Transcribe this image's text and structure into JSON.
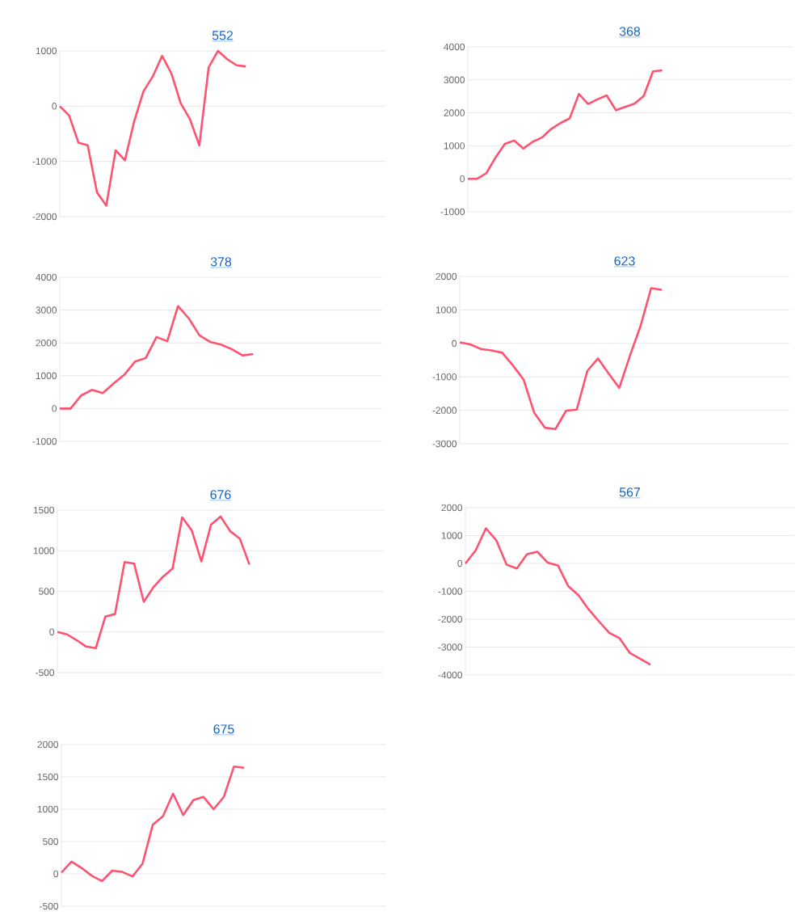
{
  "chart_data": [
    {
      "type": "line",
      "title": "552",
      "categories": [
        null,
        null,
        null,
        null,
        null,
        null,
        null,
        null,
        null,
        null,
        null,
        null,
        null,
        null,
        null,
        null,
        null,
        null,
        null,
        null,
        null,
        null,
        null,
        null,
        null,
        null,
        null,
        null,
        null,
        null,
        null,
        null,
        null,
        null,
        null,
        null
      ],
      "values": [
        0,
        -170,
        -660,
        -710,
        -1560,
        -1800,
        -800,
        -980,
        -270,
        270,
        540,
        910,
        590,
        50,
        -240,
        -710,
        700,
        1000,
        850,
        740,
        720,
        null,
        null,
        null,
        null,
        null,
        null,
        null,
        null,
        null,
        null,
        null,
        null,
        null,
        null,
        null
      ],
      "color": "#ff5270",
      "ylim": [
        -2000,
        1000
      ],
      "yticks": [
        -2000,
        -1000,
        0,
        1000
      ],
      "grid": "y",
      "tick_labels": "y"
    },
    {
      "type": "line",
      "title": "368",
      "categories": [
        null,
        null,
        null,
        null,
        null,
        null,
        null,
        null,
        null,
        null,
        null,
        null,
        null,
        null,
        null,
        null,
        null,
        null,
        null,
        null,
        null,
        null,
        null,
        null,
        null,
        null,
        null,
        null,
        null,
        null,
        null,
        null,
        null,
        null,
        null,
        null
      ],
      "values": [
        0,
        0,
        170,
        650,
        1060,
        1160,
        920,
        1120,
        1250,
        1510,
        1690,
        1830,
        2570,
        2270,
        2410,
        2530,
        2080,
        2180,
        2280,
        2510,
        3260,
        3290,
        null,
        null,
        null,
        null,
        null,
        null,
        null,
        null,
        null,
        null,
        null,
        null,
        null,
        null
      ],
      "color": "#ff5270",
      "ylim": [
        -1000,
        4000
      ],
      "yticks": [
        -1000,
        0,
        1000,
        2000,
        3000,
        4000
      ],
      "grid": "y",
      "tick_labels": "y"
    },
    {
      "type": "line",
      "title": "378",
      "categories": [
        null,
        null,
        null,
        null,
        null,
        null,
        null,
        null,
        null,
        null,
        null,
        null,
        null,
        null,
        null,
        null,
        null,
        null,
        null,
        null,
        null,
        null,
        null,
        null,
        null,
        null,
        null,
        null,
        null,
        null,
        null
      ],
      "values": [
        0,
        0,
        400,
        570,
        470,
        760,
        1030,
        1430,
        1540,
        2180,
        2050,
        3120,
        2750,
        2230,
        2030,
        1950,
        1810,
        1620,
        1660,
        null,
        null,
        null,
        null,
        null,
        null,
        null,
        null,
        null,
        null,
        null,
        null
      ],
      "color": "#ff5270",
      "ylim": [
        -1000,
        4000
      ],
      "yticks": [
        -1000,
        0,
        1000,
        2000,
        3000,
        4000
      ],
      "grid": "y",
      "tick_labels": "y"
    },
    {
      "type": "line",
      "title": "623",
      "categories": [
        null,
        null,
        null,
        null,
        null,
        null,
        null,
        null,
        null,
        null,
        null,
        null,
        null,
        null,
        null,
        null,
        null,
        null,
        null,
        null,
        null,
        null,
        null,
        null,
        null,
        null,
        null,
        null,
        null,
        null,
        null,
        null
      ],
      "values": [
        30,
        -30,
        -170,
        -210,
        -280,
        -660,
        -1080,
        -2070,
        -2520,
        -2560,
        -2010,
        -1980,
        -820,
        -450,
        -900,
        -1330,
        -370,
        520,
        1650,
        1600,
        null,
        null,
        null,
        null,
        null,
        null,
        null,
        null,
        null,
        null,
        null,
        null
      ],
      "color": "#ff5270",
      "ylim": [
        -3000,
        2000
      ],
      "yticks": [
        -3000,
        -2000,
        -1000,
        0,
        1000,
        2000
      ],
      "grid": "y",
      "tick_labels": "y"
    },
    {
      "type": "line",
      "title": "676",
      "categories": [
        null,
        null,
        null,
        null,
        null,
        null,
        null,
        null,
        null,
        null,
        null,
        null,
        null,
        null,
        null,
        null,
        null,
        null,
        null,
        null,
        null,
        null,
        null,
        null,
        null,
        null,
        null,
        null,
        null,
        null,
        null,
        null,
        null,
        null,
        null
      ],
      "values": [
        0,
        -30,
        -100,
        -180,
        -200,
        190,
        220,
        860,
        840,
        370,
        550,
        680,
        780,
        1410,
        1250,
        870,
        1320,
        1420,
        1240,
        1150,
        830,
        null,
        null,
        null,
        null,
        null,
        null,
        null,
        null,
        null,
        null,
        null,
        null,
        null,
        null
      ],
      "color": "#ff5270",
      "ylim": [
        -500,
        1500
      ],
      "yticks": [
        -500,
        0,
        500,
        1000,
        1500
      ],
      "grid": "y",
      "tick_labels": "y"
    },
    {
      "type": "line",
      "title": "567",
      "categories": [
        null,
        null,
        null,
        null,
        null,
        null,
        null,
        null,
        null,
        null,
        null,
        null,
        null,
        null,
        null,
        null,
        null,
        null,
        null,
        null,
        null,
        null,
        null,
        null,
        null,
        null,
        null,
        null,
        null,
        null,
        null,
        null,
        null
      ],
      "values": [
        0,
        470,
        1260,
        830,
        -40,
        -180,
        330,
        420,
        30,
        -70,
        -810,
        -1140,
        -1650,
        -2080,
        -2490,
        -2680,
        -3210,
        -3420,
        -3630,
        null,
        null,
        null,
        null,
        null,
        null,
        null,
        null,
        null,
        null,
        null,
        null,
        null,
        null
      ],
      "color": "#ff5270",
      "ylim": [
        -4000,
        2000
      ],
      "yticks": [
        -4000,
        -3000,
        -2000,
        -1000,
        0,
        1000,
        2000
      ],
      "grid": "y",
      "tick_labels": "y"
    },
    {
      "type": "line",
      "title": "675",
      "categories": [
        null,
        null,
        null,
        null,
        null,
        null,
        null,
        null,
        null,
        null,
        null,
        null,
        null,
        null,
        null,
        null,
        null,
        null,
        null,
        null,
        null,
        null,
        null,
        null,
        null,
        null,
        null,
        null,
        null,
        null,
        null,
        null,
        null
      ],
      "values": [
        20,
        190,
        90,
        -30,
        -110,
        50,
        30,
        -40,
        160,
        760,
        890,
        1240,
        910,
        1140,
        1190,
        1000,
        1190,
        1660,
        1640,
        null,
        null,
        null,
        null,
        null,
        null,
        null,
        null,
        null,
        null,
        null,
        null,
        null,
        null
      ],
      "color": "#ff5270",
      "ylim": [
        -500,
        2000
      ],
      "yticks": [
        -500,
        0,
        500,
        1000,
        1500,
        2000
      ],
      "grid": "y",
      "tick_labels": "y"
    }
  ]
}
